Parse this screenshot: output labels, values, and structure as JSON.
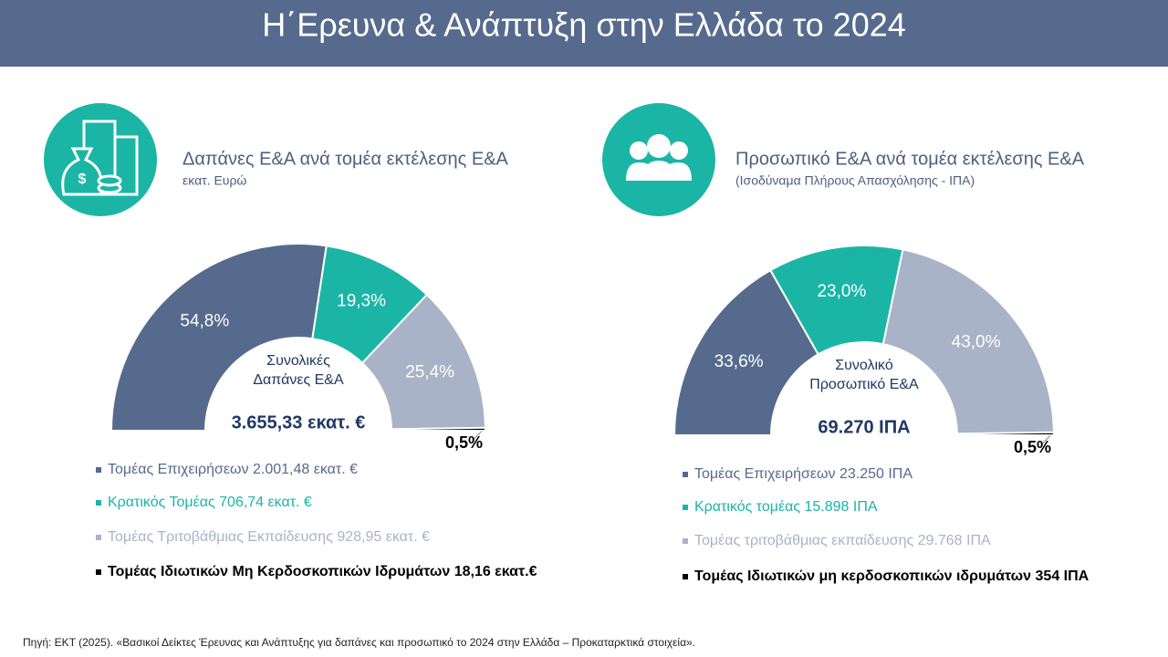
{
  "title": "Η΄Ερευνα & Ανάπτυξη στην Ελλάδα το 2024",
  "source": "Πηγή: ΕΚΤ (2025). «Βασικοί Δείκτες Έρευνας και Ανάπτυξης για δαπάνες και προσωπικό το 2024 στην Ελλάδα – Προκαταρκτικά στοιχεία».",
  "chart_data": [
    {
      "type": "pie",
      "title": "Δαπάνες Ε&Α ανά τομέα εκτέλεσης Ε&Α",
      "subtitle": "εκατ. Ευρώ",
      "center_label": [
        "Συνολικές",
        "Δαπάνες Ε&Α"
      ],
      "center_value": "3.655,33 εκατ. €",
      "categories": [
        "Τομέας Επιχειρήσεων 2.001,48 εκατ. €",
        "Κρατικός Τομέας 706,74 εκατ. €",
        "Τομέας Τριτοβάθμιας Εκπαίδευσης 928,95 εκατ. €",
        "Τομέας Ιδιωτικών Μη Κερδοσκοπικών Ιδρυμάτων 18,16 εκατ.€"
      ],
      "values": [
        54.8,
        19.3,
        25.4,
        0.5
      ],
      "value_labels": [
        "54,8%",
        "19,3%",
        "25,4%",
        "0,5%"
      ],
      "colors": [
        "#566a8e",
        "#1bb5a6",
        "#a9b3c7",
        "#000000"
      ]
    },
    {
      "type": "pie",
      "title": "Προσωπικό Ε&Α ανά τομέα εκτέλεσης Ε&Α",
      "subtitle": "(Ισοδύναμα Πλήρους Απασχόλησης - ΙΠΑ)",
      "center_label": [
        "Συνολικό",
        "Προσωπικό Ε&Α"
      ],
      "center_value": "69.270 ΙΠΑ",
      "categories": [
        "Τομέας Επιχειρήσεων 23.250 ΙΠΑ",
        "Κρατικός τομέας 15.898 ΙΠΑ",
        "Τομέας τριτοβάθμιας εκπαίδευσης 29.768 ΙΠΑ",
        "Τομέας Ιδιωτικών μη κερδοσκοπικών ιδρυμάτων 354 ΙΠΑ"
      ],
      "values": [
        33.6,
        23.0,
        43.0,
        0.5
      ],
      "value_labels": [
        "33,6%",
        "23,0%",
        "43,0%",
        "0,5%"
      ],
      "colors": [
        "#566a8e",
        "#1bb5a6",
        "#a9b3c7",
        "#000000"
      ]
    }
  ]
}
